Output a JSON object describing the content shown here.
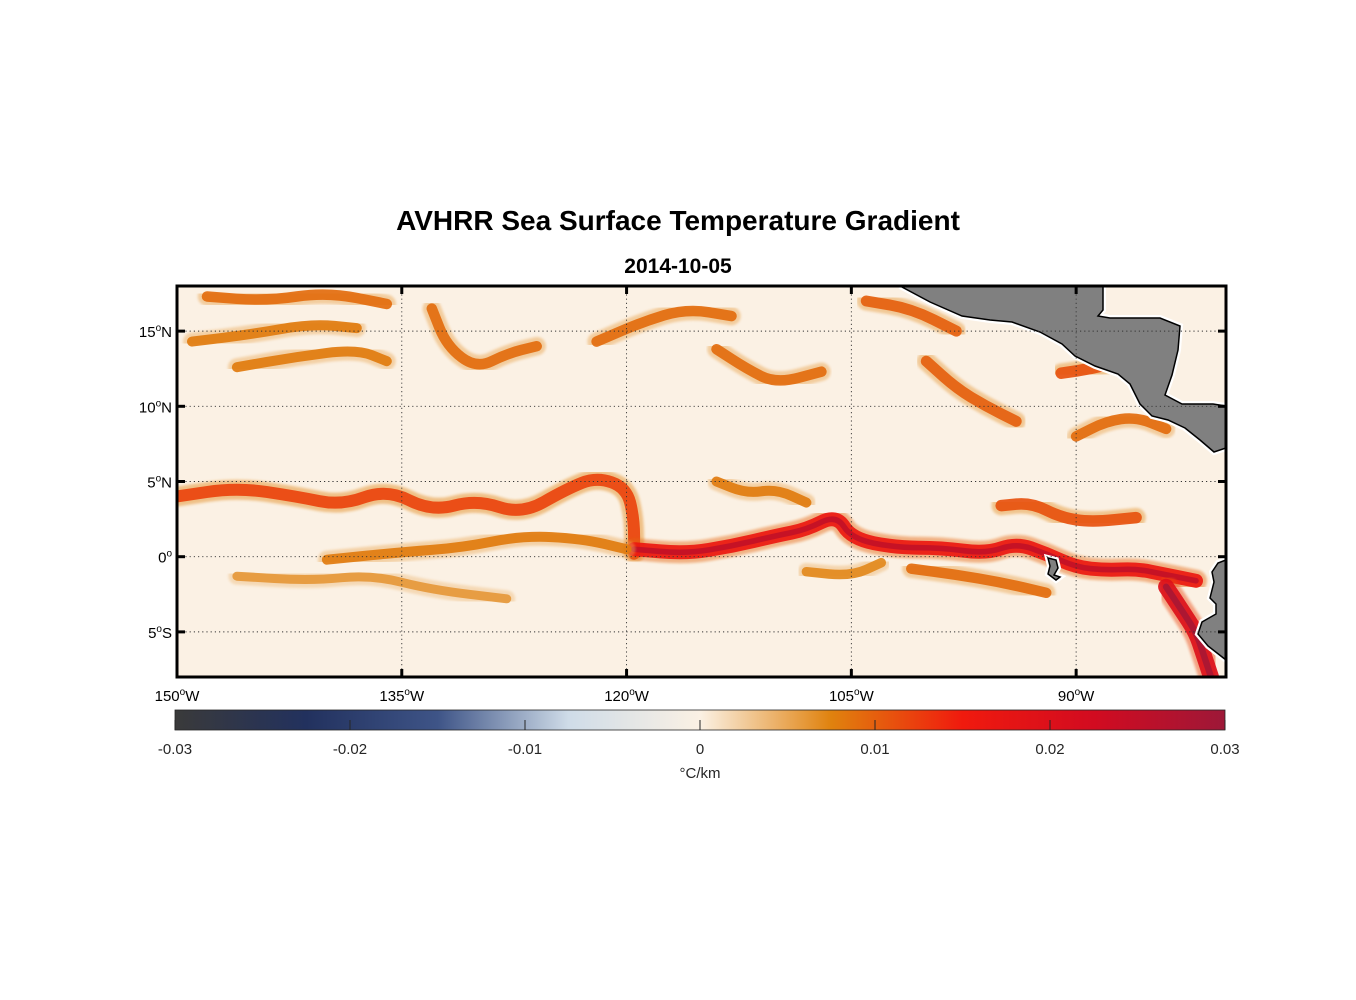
{
  "title": "AVHRR Sea Surface Temperature Gradient",
  "subtitle": "2014-10-05",
  "map": {
    "lon_range": [
      -150,
      -80
    ],
    "lat_range": [
      -8,
      18
    ],
    "lat_ticks": [
      {
        "value": 15,
        "num": "15",
        "deg": "o",
        "hemi": "N"
      },
      {
        "value": 10,
        "num": "10",
        "deg": "o",
        "hemi": "N"
      },
      {
        "value": 5,
        "num": "5",
        "deg": "o",
        "hemi": "N"
      },
      {
        "value": 0,
        "num": "0",
        "deg": "o",
        "hemi": ""
      },
      {
        "value": -5,
        "num": "5",
        "deg": "o",
        "hemi": "S"
      }
    ],
    "lon_ticks": [
      {
        "value": -150,
        "num": "150",
        "deg": "o",
        "hemi": "W"
      },
      {
        "value": -135,
        "num": "135",
        "deg": "o",
        "hemi": "W"
      },
      {
        "value": -120,
        "num": "120",
        "deg": "o",
        "hemi": "W"
      },
      {
        "value": -105,
        "num": "105",
        "deg": "o",
        "hemi": "W"
      },
      {
        "value": -90,
        "num": "90",
        "deg": "o",
        "hemi": "W"
      }
    ],
    "grid": "dotted",
    "land_color": "#808080",
    "ocean_background": "#fbf1e4"
  },
  "colorbar": {
    "min": -0.03,
    "max": 0.03,
    "tick_labels": [
      "-0.03",
      "-0.02",
      "-0.01",
      "0",
      "0.01",
      "0.02",
      "0.03"
    ],
    "tick_values": [
      -0.03,
      -0.02,
      -0.01,
      0,
      0.01,
      0.02,
      0.03
    ],
    "unit_label": "°C/km",
    "colors": [
      "#3a3a3a",
      "#22315e",
      "#3e5487",
      "#cfdce8",
      "#fbf1e4",
      "#e0820e",
      "#f01a0e",
      "#d20b20",
      "#9d1838"
    ]
  },
  "fronts": [
    {
      "name": "equatorial-front-north",
      "strength": 0.012,
      "points": [
        [
          -150,
          4
        ],
        [
          -146,
          4.6
        ],
        [
          -142,
          4
        ],
        [
          -139,
          3.4
        ],
        [
          -136,
          4.5
        ],
        [
          -133,
          3
        ],
        [
          -130,
          3.8
        ],
        [
          -127,
          2.8
        ],
        [
          -124,
          4.5
        ],
        [
          -122,
          5.3
        ],
        [
          -120,
          4.6
        ],
        [
          -119.5,
          2.5
        ],
        [
          -119.5,
          0.2
        ]
      ]
    },
    {
      "name": "equatorial-front-central",
      "strength": 0.016,
      "points": [
        [
          -119.5,
          0.5
        ],
        [
          -116,
          0.2
        ],
        [
          -113,
          0.7
        ],
        [
          -110,
          1.4
        ],
        [
          -108,
          1.8
        ],
        [
          -106,
          2.8
        ],
        [
          -105,
          1.2
        ],
        [
          -102,
          0.6
        ],
        [
          -99,
          0.6
        ],
        [
          -96,
          0.2
        ],
        [
          -94,
          0.9
        ],
        [
          -92,
          0.2
        ],
        [
          -90,
          -0.7
        ],
        [
          -88,
          -0.9
        ],
        [
          -86,
          -0.8
        ],
        [
          -84,
          -1.2
        ],
        [
          -82,
          -1.6
        ]
      ]
    },
    {
      "name": "coastal-front-peru",
      "strength": 0.02,
      "points": [
        [
          -84,
          -2
        ],
        [
          -83,
          -3.5
        ],
        [
          -82,
          -5
        ],
        [
          -81.5,
          -6.5
        ],
        [
          -81,
          -8
        ]
      ]
    },
    {
      "name": "south-equatorial-front",
      "strength": 0.008,
      "points": [
        [
          -140,
          -0.2
        ],
        [
          -135,
          0.3
        ],
        [
          -131,
          0.6
        ],
        [
          -127,
          1.4
        ],
        [
          -123,
          1.2
        ],
        [
          -120,
          0.5
        ]
      ]
    },
    {
      "name": "southern-filament",
      "strength": 0.006,
      "points": [
        [
          -146,
          -1.3
        ],
        [
          -141,
          -1.6
        ],
        [
          -137,
          -1.2
        ],
        [
          -133,
          -2.2
        ],
        [
          -128,
          -2.8
        ]
      ]
    },
    {
      "name": "northern-filament-a",
      "strength": 0.009,
      "points": [
        [
          -148,
          17.3
        ],
        [
          -144,
          17
        ],
        [
          -140,
          17.6
        ],
        [
          -136,
          16.8
        ]
      ]
    },
    {
      "name": "northern-filament-b",
      "strength": 0.009,
      "points": [
        [
          -133,
          16.5
        ],
        [
          -132,
          14
        ],
        [
          -130,
          12.5
        ],
        [
          -128,
          13.5
        ],
        [
          -126,
          14
        ]
      ]
    },
    {
      "name": "northern-filament-c",
      "strength": 0.008,
      "points": [
        [
          -149,
          14.3
        ],
        [
          -145,
          14.8
        ],
        [
          -141,
          15.5
        ],
        [
          -138,
          15.2
        ]
      ]
    },
    {
      "name": "northern-filament-d",
      "strength": 0.008,
      "points": [
        [
          -146,
          12.6
        ],
        [
          -142,
          13.3
        ],
        [
          -138,
          13.8
        ],
        [
          -136,
          13
        ]
      ]
    },
    {
      "name": "northern-filament-e",
      "strength": 0.009,
      "points": [
        [
          -122,
          14.3
        ],
        [
          -119,
          15.6
        ],
        [
          -116,
          16.5
        ],
        [
          -113,
          16
        ]
      ]
    },
    {
      "name": "northern-filament-f",
      "strength": 0.009,
      "points": [
        [
          -114,
          13.8
        ],
        [
          -112,
          12.5
        ],
        [
          -110,
          11.5
        ],
        [
          -107,
          12.3
        ]
      ]
    },
    {
      "name": "northern-filament-g",
      "strength": 0.01,
      "points": [
        [
          -100,
          13
        ],
        [
          -98,
          11.2
        ],
        [
          -96,
          10
        ],
        [
          -94,
          9
        ]
      ]
    },
    {
      "name": "northern-filament-h",
      "strength": 0.01,
      "points": [
        [
          -104,
          17
        ],
        [
          -101,
          16.5
        ],
        [
          -98,
          15
        ]
      ]
    },
    {
      "name": "northern-filament-i",
      "strength": 0.011,
      "points": [
        [
          -91,
          12.2
        ],
        [
          -89,
          12.5
        ],
        [
          -87,
          13
        ]
      ]
    },
    {
      "name": "northern-filament-j",
      "strength": 0.009,
      "points": [
        [
          -90,
          8
        ],
        [
          -88,
          9
        ],
        [
          -86,
          9.3
        ],
        [
          -84,
          8.5
        ]
      ]
    },
    {
      "name": "mid-filament-a",
      "strength": 0.008,
      "points": [
        [
          -114,
          5
        ],
        [
          -112,
          4.2
        ],
        [
          -110,
          4.5
        ],
        [
          -108,
          3.6
        ]
      ]
    },
    {
      "name": "mid-filament-b",
      "strength": 0.011,
      "points": [
        [
          -95,
          3.4
        ],
        [
          -93,
          3.6
        ],
        [
          -91,
          2.6
        ],
        [
          -89,
          2.3
        ],
        [
          -86,
          2.6
        ]
      ]
    },
    {
      "name": "mid-filament-c",
      "strength": 0.009,
      "points": [
        [
          -101,
          -0.8
        ],
        [
          -98,
          -1.2
        ],
        [
          -95,
          -1.7
        ],
        [
          -92,
          -2.4
        ]
      ]
    },
    {
      "name": "mid-filament-d",
      "strength": 0.007,
      "points": [
        [
          -108,
          -1
        ],
        [
          -105,
          -1.3
        ],
        [
          -103,
          -0.4
        ]
      ]
    }
  ]
}
